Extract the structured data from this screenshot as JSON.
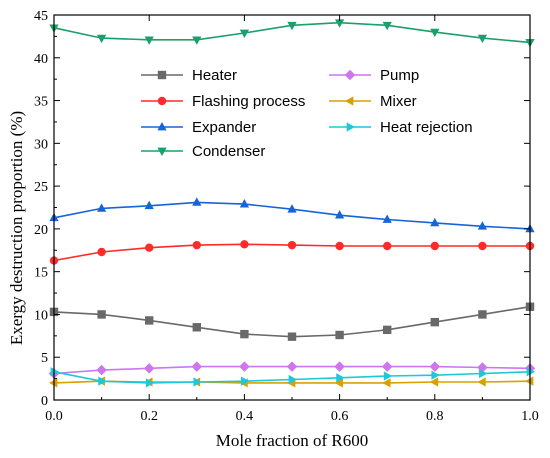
{
  "chart_data": {
    "type": "line",
    "xlabel": "Mole fraction of R600",
    "ylabel": "Exergy destruction proportion (%)",
    "xlim": [
      0.0,
      1.0
    ],
    "ylim": [
      0,
      45
    ],
    "x_ticks": [
      "0.0",
      "0.2",
      "0.4",
      "0.6",
      "0.8",
      "1.0"
    ],
    "y_ticks": [
      "0",
      "5",
      "10",
      "15",
      "20",
      "25",
      "30",
      "35",
      "40",
      "45"
    ],
    "legend_position": "upper-left, two columns",
    "grid": false,
    "x": [
      0.0,
      0.1,
      0.2,
      0.3,
      0.4,
      0.5,
      0.6,
      0.7,
      0.8,
      0.9,
      1.0
    ],
    "series": [
      {
        "name": "Heater",
        "color": "#696969",
        "marker": "square",
        "values": [
          10.3,
          10.0,
          9.3,
          8.5,
          7.7,
          7.4,
          7.6,
          8.2,
          9.1,
          10.0,
          10.9
        ]
      },
      {
        "name": "Pump",
        "color": "#cc77ee",
        "marker": "diamond",
        "values": [
          3.1,
          3.5,
          3.7,
          3.9,
          3.9,
          3.9,
          3.9,
          3.9,
          3.9,
          3.8,
          3.7
        ]
      },
      {
        "name": "Flashing process",
        "color": "#ff2a2a",
        "marker": "circle",
        "values": [
          16.3,
          17.3,
          17.8,
          18.1,
          18.2,
          18.1,
          18.0,
          18.0,
          18.0,
          18.0,
          18.0
        ]
      },
      {
        "name": "Mixer",
        "color": "#d9a000",
        "marker": "triangle-left",
        "values": [
          2.0,
          2.2,
          2.1,
          2.1,
          2.0,
          2.0,
          2.0,
          2.0,
          2.1,
          2.1,
          2.2
        ]
      },
      {
        "name": "Expander",
        "color": "#1565d8",
        "marker": "triangle-up",
        "values": [
          21.3,
          22.4,
          22.7,
          23.1,
          22.9,
          22.3,
          21.6,
          21.1,
          20.7,
          20.3,
          20.0
        ]
      },
      {
        "name": "Heat rejection",
        "color": "#1ec8d8",
        "marker": "triangle-right",
        "values": [
          3.3,
          2.2,
          2.0,
          2.1,
          2.2,
          2.4,
          2.6,
          2.8,
          2.9,
          3.1,
          3.3
        ]
      },
      {
        "name": "Condenser",
        "color": "#1aa06a",
        "marker": "triangle-down",
        "values": [
          43.5,
          42.3,
          42.1,
          42.1,
          42.9,
          43.8,
          44.1,
          43.8,
          43.0,
          42.3,
          41.8
        ]
      }
    ]
  }
}
